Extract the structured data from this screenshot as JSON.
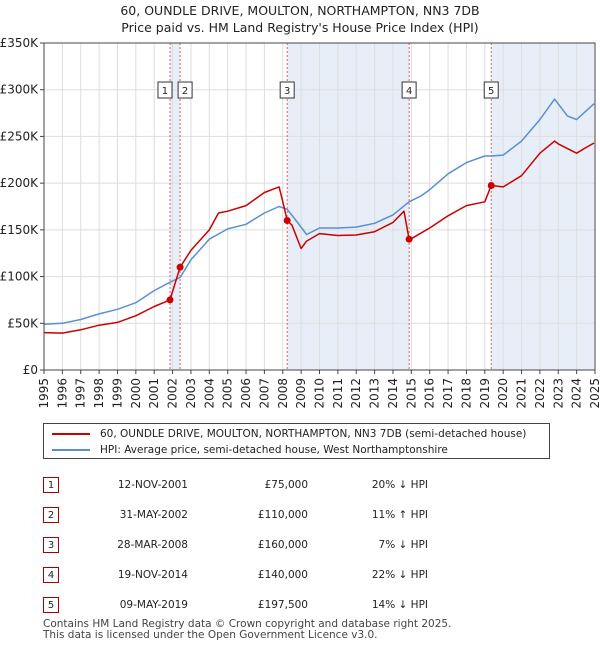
{
  "title": {
    "line1": "60, OUNDLE DRIVE, MOULTON, NORTHAMPTON, NN3 7DB",
    "line2": "Price paid vs. HM Land Registry's House Price Index (HPI)"
  },
  "colors": {
    "price_line": "#cc0000",
    "hpi_line": "#5b8fd1",
    "shade": "#e8eef7",
    "marker_line": "#e06060",
    "grid": "#dddddd"
  },
  "chart_data": {
    "type": "line",
    "title": "60, OUNDLE DRIVE, MOULTON, NORTHAMPTON, NN3 7DB — Price paid vs. HM Land Registry's House Price Index (HPI)",
    "xlabel": "",
    "ylabel": "",
    "xlim": [
      1995,
      2025
    ],
    "ylim": [
      0,
      350000
    ],
    "x_ticks": [
      "1995",
      "1996",
      "1997",
      "1998",
      "1999",
      "2000",
      "2001",
      "2002",
      "2003",
      "2004",
      "2005",
      "2006",
      "2007",
      "2008",
      "2009",
      "2010",
      "2011",
      "2012",
      "2013",
      "2014",
      "2015",
      "2016",
      "2017",
      "2018",
      "2019",
      "2020",
      "2021",
      "2022",
      "2023",
      "2024",
      "2025"
    ],
    "y_ticks": [
      {
        "value": 0,
        "label": "£0"
      },
      {
        "value": 50000,
        "label": "£50K"
      },
      {
        "value": 100000,
        "label": "£100K"
      },
      {
        "value": 150000,
        "label": "£150K"
      },
      {
        "value": 200000,
        "label": "£200K"
      },
      {
        "value": 250000,
        "label": "£250K"
      },
      {
        "value": 300000,
        "label": "£300K"
      },
      {
        "value": 350000,
        "label": "£350K"
      }
    ],
    "grid": true,
    "series": [
      {
        "name": "60, OUNDLE DRIVE, MOULTON, NORTHAMPTON, NN3 7DB (semi-detached house)",
        "color": "#cc0000",
        "points": [
          [
            1995.0,
            40000
          ],
          [
            1996.0,
            39500
          ],
          [
            1997.0,
            43000
          ],
          [
            1998.0,
            48000
          ],
          [
            1999.0,
            51000
          ],
          [
            2000.0,
            58000
          ],
          [
            2001.0,
            68000
          ],
          [
            2001.86,
            75000
          ],
          [
            2002.41,
            110000
          ],
          [
            2003.0,
            128000
          ],
          [
            2004.0,
            150000
          ],
          [
            2004.5,
            168000
          ],
          [
            2005.0,
            170000
          ],
          [
            2006.0,
            176000
          ],
          [
            2007.0,
            190000
          ],
          [
            2007.8,
            196000
          ],
          [
            2008.0,
            180000
          ],
          [
            2008.24,
            160000
          ],
          [
            2008.5,
            155000
          ],
          [
            2009.0,
            130000
          ],
          [
            2009.3,
            138000
          ],
          [
            2010.0,
            146000
          ],
          [
            2011.0,
            144000
          ],
          [
            2012.0,
            144500
          ],
          [
            2013.0,
            148000
          ],
          [
            2014.0,
            158000
          ],
          [
            2014.6,
            170000
          ],
          [
            2014.88,
            140000
          ],
          [
            2015.0,
            140500
          ],
          [
            2016.0,
            152000
          ],
          [
            2017.0,
            165000
          ],
          [
            2018.0,
            176000
          ],
          [
            2019.0,
            180000
          ],
          [
            2019.35,
            197500
          ],
          [
            2020.0,
            196000
          ],
          [
            2021.0,
            208000
          ],
          [
            2022.0,
            232000
          ],
          [
            2022.8,
            245000
          ],
          [
            2023.0,
            242000
          ],
          [
            2024.0,
            232000
          ],
          [
            2024.5,
            238000
          ],
          [
            2024.95,
            243000
          ]
        ]
      },
      {
        "name": "HPI: Average price, semi-detached house, West Northamptonshire",
        "color": "#5b8fd1",
        "points": [
          [
            1995.0,
            49000
          ],
          [
            1996.0,
            50000
          ],
          [
            1997.0,
            54000
          ],
          [
            1998.0,
            60000
          ],
          [
            1999.0,
            65000
          ],
          [
            2000.0,
            72000
          ],
          [
            2001.0,
            85000
          ],
          [
            2001.86,
            94000
          ],
          [
            2002.41,
            99000
          ],
          [
            2003.0,
            118000
          ],
          [
            2004.0,
            140000
          ],
          [
            2005.0,
            151000
          ],
          [
            2006.0,
            156000
          ],
          [
            2007.0,
            168000
          ],
          [
            2007.8,
            175000
          ],
          [
            2008.24,
            172000
          ],
          [
            2008.8,
            158000
          ],
          [
            2009.3,
            145000
          ],
          [
            2010.0,
            152000
          ],
          [
            2011.0,
            152000
          ],
          [
            2012.0,
            153000
          ],
          [
            2013.0,
            157000
          ],
          [
            2014.0,
            166000
          ],
          [
            2014.88,
            180000
          ],
          [
            2015.5,
            186000
          ],
          [
            2016.0,
            193000
          ],
          [
            2017.0,
            210000
          ],
          [
            2018.0,
            222000
          ],
          [
            2019.0,
            229000
          ],
          [
            2019.35,
            229000
          ],
          [
            2020.0,
            230000
          ],
          [
            2021.0,
            245000
          ],
          [
            2022.0,
            268000
          ],
          [
            2022.8,
            290000
          ],
          [
            2023.5,
            272000
          ],
          [
            2024.0,
            268000
          ],
          [
            2024.5,
            277000
          ],
          [
            2024.95,
            285000
          ]
        ]
      }
    ],
    "sales": [
      {
        "n": "1",
        "x": 2001.86,
        "value": 75000
      },
      {
        "n": "2",
        "x": 2002.41,
        "value": 110000
      },
      {
        "n": "3",
        "x": 2008.24,
        "value": 160000
      },
      {
        "n": "4",
        "x": 2014.88,
        "value": 140000
      },
      {
        "n": "5",
        "x": 2019.35,
        "value": 197500
      }
    ],
    "shaded_periods": [
      [
        2001.86,
        2002.41
      ],
      [
        2008.24,
        2014.88
      ],
      [
        2019.35,
        2024.95
      ]
    ]
  },
  "legend": {
    "price_label": "60, OUNDLE DRIVE, MOULTON, NORTHAMPTON, NN3 7DB (semi-detached house)",
    "hpi_label": "HPI: Average price, semi-detached house, West Northamptonshire"
  },
  "transactions": [
    {
      "num": "1",
      "date": "12-NOV-2001",
      "price": "£75,000",
      "hpi": "20% ↓ HPI"
    },
    {
      "num": "2",
      "date": "31-MAY-2002",
      "price": "£110,000",
      "hpi": "11% ↑ HPI"
    },
    {
      "num": "3",
      "date": "28-MAR-2008",
      "price": "£160,000",
      "hpi": "7% ↓ HPI"
    },
    {
      "num": "4",
      "date": "19-NOV-2014",
      "price": "£140,000",
      "hpi": "22% ↓ HPI"
    },
    {
      "num": "5",
      "date": "09-MAY-2019",
      "price": "£197,500",
      "hpi": "14% ↓ HPI"
    }
  ],
  "footer": {
    "line1": "Contains HM Land Registry data © Crown copyright and database right 2025.",
    "line2": "This data is licensed under the Open Government Licence v3.0."
  }
}
